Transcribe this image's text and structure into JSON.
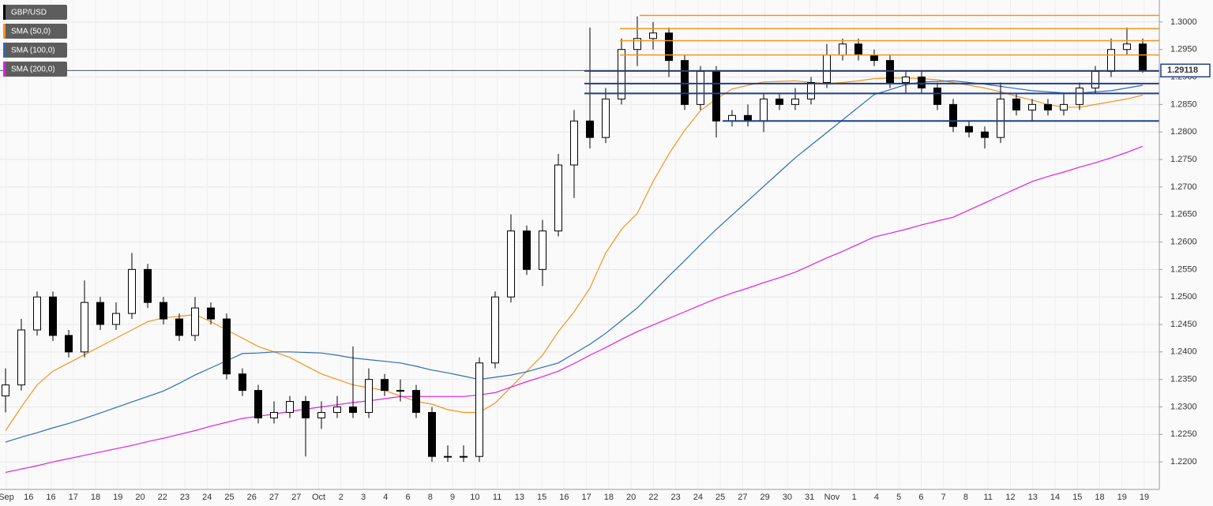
{
  "chart_data": {
    "type": "candlestick",
    "name": "GBP/USD",
    "candle_colors": {
      "up": "#ffffff",
      "down": "#000000",
      "edge": "#000000"
    },
    "open": [
      1.232,
      1.234,
      1.244,
      1.25,
      1.243,
      1.24,
      1.249,
      1.245,
      1.247,
      1.255,
      1.249,
      1.246,
      1.243,
      1.248,
      1.246,
      1.236,
      1.233,
      1.228,
      1.229,
      1.231,
      1.228,
      1.229,
      1.23,
      1.229,
      1.235,
      1.233,
      1.233,
      1.229,
      1.221,
      1.221,
      1.221,
      1.238,
      1.25,
      1.262,
      1.255,
      1.262,
      1.274,
      1.282,
      1.279,
      1.286,
      1.295,
      1.297,
      1.298,
      1.293,
      1.285,
      1.291,
      1.282,
      1.283,
      1.282,
      1.286,
      1.285,
      1.286,
      1.289,
      1.294,
      1.296,
      1.294,
      1.293,
      1.289,
      1.29,
      1.288,
      1.285,
      1.281,
      1.28,
      1.279,
      1.286,
      1.284,
      1.285,
      1.284,
      1.285,
      1.288,
      1.291,
      1.295,
      1.296
    ],
    "high": [
      1.237,
      1.246,
      1.251,
      1.251,
      1.244,
      1.253,
      1.25,
      1.249,
      1.258,
      1.256,
      1.25,
      1.247,
      1.25,
      1.249,
      1.247,
      1.237,
      1.234,
      1.231,
      1.232,
      1.232,
      1.231,
      1.232,
      1.241,
      1.237,
      1.236,
      1.235,
      1.234,
      1.23,
      1.223,
      1.223,
      1.239,
      1.251,
      1.265,
      1.263,
      1.264,
      1.276,
      1.284,
      1.299,
      1.288,
      1.297,
      1.301,
      1.3,
      1.299,
      1.294,
      1.292,
      1.292,
      1.284,
      1.285,
      1.287,
      1.287,
      1.288,
      1.29,
      1.296,
      1.297,
      1.297,
      1.295,
      1.294,
      1.291,
      1.291,
      1.289,
      1.286,
      1.282,
      1.281,
      1.289,
      1.287,
      1.286,
      1.286,
      1.287,
      1.289,
      1.292,
      1.297,
      1.299,
      1.297
    ],
    "low": [
      1.229,
      1.233,
      1.243,
      1.242,
      1.239,
      1.239,
      1.244,
      1.244,
      1.246,
      1.248,
      1.245,
      1.242,
      1.242,
      1.245,
      1.235,
      1.232,
      1.227,
      1.227,
      1.228,
      1.221,
      1.226,
      1.228,
      1.228,
      1.228,
      1.232,
      1.231,
      1.228,
      1.22,
      1.22,
      1.22,
      1.22,
      1.237,
      1.249,
      1.254,
      1.252,
      1.261,
      1.268,
      1.277,
      1.278,
      1.285,
      1.292,
      1.295,
      1.29,
      1.284,
      1.284,
      1.279,
      1.281,
      1.281,
      1.28,
      1.284,
      1.284,
      1.285,
      1.288,
      1.293,
      1.293,
      1.292,
      1.288,
      1.287,
      1.287,
      1.284,
      1.28,
      1.279,
      1.277,
      1.278,
      1.283,
      1.282,
      1.283,
      1.283,
      1.284,
      1.287,
      1.29,
      1.294,
      1.2908
    ],
    "close": [
      1.234,
      1.244,
      1.25,
      1.243,
      1.24,
      1.249,
      1.245,
      1.247,
      1.255,
      1.249,
      1.246,
      1.243,
      1.248,
      1.246,
      1.236,
      1.233,
      1.228,
      1.229,
      1.231,
      1.228,
      1.229,
      1.23,
      1.229,
      1.235,
      1.233,
      1.233,
      1.229,
      1.221,
      1.221,
      1.221,
      1.238,
      1.25,
      1.262,
      1.255,
      1.262,
      1.274,
      1.282,
      1.279,
      1.286,
      1.295,
      1.297,
      1.298,
      1.293,
      1.285,
      1.291,
      1.282,
      1.283,
      1.282,
      1.286,
      1.285,
      1.286,
      1.289,
      1.294,
      1.296,
      1.294,
      1.293,
      1.289,
      1.29,
      1.288,
      1.285,
      1.281,
      1.28,
      1.279,
      1.286,
      1.284,
      1.285,
      1.284,
      1.285,
      1.288,
      1.291,
      1.295,
      1.296,
      1.2912
    ],
    "series": [
      {
        "name": "SMA (50,0)",
        "color": "#f7931e",
        "values": [
          1.2257,
          1.23,
          1.234,
          1.2365,
          1.238,
          1.2395,
          1.241,
          1.2425,
          1.244,
          1.2455,
          1.2462,
          1.2465,
          1.2468,
          1.2455,
          1.244,
          1.2425,
          1.241,
          1.24,
          1.239,
          1.2375,
          1.236,
          1.235,
          1.234,
          1.2335,
          1.233,
          1.232,
          1.231,
          1.2305,
          1.2295,
          1.229,
          1.229,
          1.2307,
          1.2336,
          1.2365,
          1.2394,
          1.2437,
          1.2473,
          1.2516,
          1.258,
          1.2623,
          1.2652,
          1.271,
          1.276,
          1.2803,
          1.2839,
          1.286,
          1.2878,
          1.2885,
          1.2891,
          1.2892,
          1.2893,
          1.289,
          1.2888,
          1.289,
          1.2893,
          1.2897,
          1.2898,
          1.2898,
          1.2897,
          1.2895,
          1.289,
          1.2885,
          1.288,
          1.2873,
          1.2865,
          1.2858,
          1.285,
          1.2845,
          1.2845,
          1.285,
          1.2855,
          1.286,
          1.2867
        ]
      },
      {
        "name": "SMA (100,0)",
        "color": "#2e6db4",
        "values": [
          1.2236,
          1.2245,
          1.2253,
          1.2262,
          1.227,
          1.2279,
          1.2289,
          1.2299,
          1.2309,
          1.2319,
          1.2329,
          1.2343,
          1.2358,
          1.2371,
          1.2384,
          1.2397,
          1.2398,
          1.24,
          1.24,
          1.2399,
          1.2398,
          1.2394,
          1.2389,
          1.2386,
          1.2383,
          1.238,
          1.2374,
          1.2367,
          1.2362,
          1.2356,
          1.235,
          1.2354,
          1.2358,
          1.2364,
          1.2372,
          1.238,
          1.2397,
          1.2414,
          1.2434,
          1.2457,
          1.248,
          1.2509,
          1.2538,
          1.2566,
          1.2595,
          1.2623,
          1.2649,
          1.2675,
          1.2701,
          1.2727,
          1.2753,
          1.2776,
          1.2799,
          1.2822,
          1.2845,
          1.2868,
          1.2877,
          1.2886,
          1.2891,
          1.2892,
          1.2893,
          1.289,
          1.2887,
          1.2883,
          1.2879,
          1.2875,
          1.2873,
          1.2871,
          1.2871,
          1.2873,
          1.2875,
          1.288,
          1.2885
        ]
      },
      {
        "name": "SMA (200,0)",
        "color": "#e020e0",
        "values": [
          1.2181,
          1.2187,
          1.2193,
          1.22,
          1.2206,
          1.2212,
          1.2218,
          1.2224,
          1.223,
          1.2237,
          1.2243,
          1.225,
          1.2257,
          1.2265,
          1.2272,
          1.2279,
          1.2283,
          1.2287,
          1.2292,
          1.2296,
          1.23,
          1.2304,
          1.2308,
          1.2311,
          1.2315,
          1.2319,
          1.2319,
          1.2319,
          1.2319,
          1.2319,
          1.2322,
          1.2326,
          1.2336,
          1.2346,
          1.2355,
          1.2365,
          1.2379,
          1.2394,
          1.2408,
          1.2423,
          1.2437,
          1.2449,
          1.2461,
          1.2473,
          1.2485,
          1.2497,
          1.2507,
          1.2516,
          1.2526,
          1.2535,
          1.2545,
          1.2558,
          1.2571,
          1.2583,
          1.2596,
          1.2609,
          1.2616,
          1.2623,
          1.2631,
          1.2638,
          1.2645,
          1.2658,
          1.2671,
          1.2684,
          1.2697,
          1.271,
          1.2719,
          1.2727,
          1.2736,
          1.2744,
          1.2753,
          1.2763,
          1.2774
        ]
      }
    ],
    "resistance_levels": [
      1.3012,
      1.2988,
      1.2966,
      1.294
    ],
    "resistance_color": "#f7931e",
    "support_levels": [
      1.2911,
      1.2888,
      1.287,
      1.282
    ],
    "support_color": "#1f3f8f",
    "last_price": 1.29118,
    "xtick_labels": [
      "Sep",
      "16",
      "16",
      "17",
      "18",
      "19",
      "20",
      "22",
      "23",
      "24",
      "25",
      "26",
      "27",
      "27",
      "Oct",
      "2",
      "3",
      "4",
      "6",
      "8",
      "9",
      "10",
      "11",
      "13",
      "15",
      "16",
      "17",
      "18",
      "20",
      "22",
      "23",
      "24",
      "25",
      "27",
      "29",
      "30",
      "31",
      "Nov",
      "1",
      "4",
      "5",
      "6",
      "7",
      "8",
      "11",
      "12",
      "13",
      "14",
      "15",
      "18",
      "19",
      "19"
    ],
    "ylim": [
      1.215,
      1.304
    ],
    "yticks": [
      {
        "value": 1.22,
        "label": "1.2200"
      },
      {
        "value": 1.225,
        "label": "1.2250"
      },
      {
        "value": 1.23,
        "label": "1.2300"
      },
      {
        "value": 1.235,
        "label": "1.2350"
      },
      {
        "value": 1.24,
        "label": "1.2400"
      },
      {
        "value": 1.245,
        "label": "1.2450"
      },
      {
        "value": 1.25,
        "label": "1.2500"
      },
      {
        "value": 1.255,
        "label": "1.2550"
      },
      {
        "value": 1.26,
        "label": "1.2600"
      },
      {
        "value": 1.265,
        "label": "1.2650"
      },
      {
        "value": 1.27,
        "label": "1.2700"
      },
      {
        "value": 1.275,
        "label": "1.2750"
      },
      {
        "value": 1.28,
        "label": "1.2800"
      },
      {
        "value": 1.285,
        "label": "1.2850"
      },
      {
        "value": 1.29,
        "label": "1.2900"
      },
      {
        "value": 1.295,
        "label": "1.2950"
      },
      {
        "value": 1.3,
        "label": "1.3000"
      }
    ],
    "grid": true
  }
}
